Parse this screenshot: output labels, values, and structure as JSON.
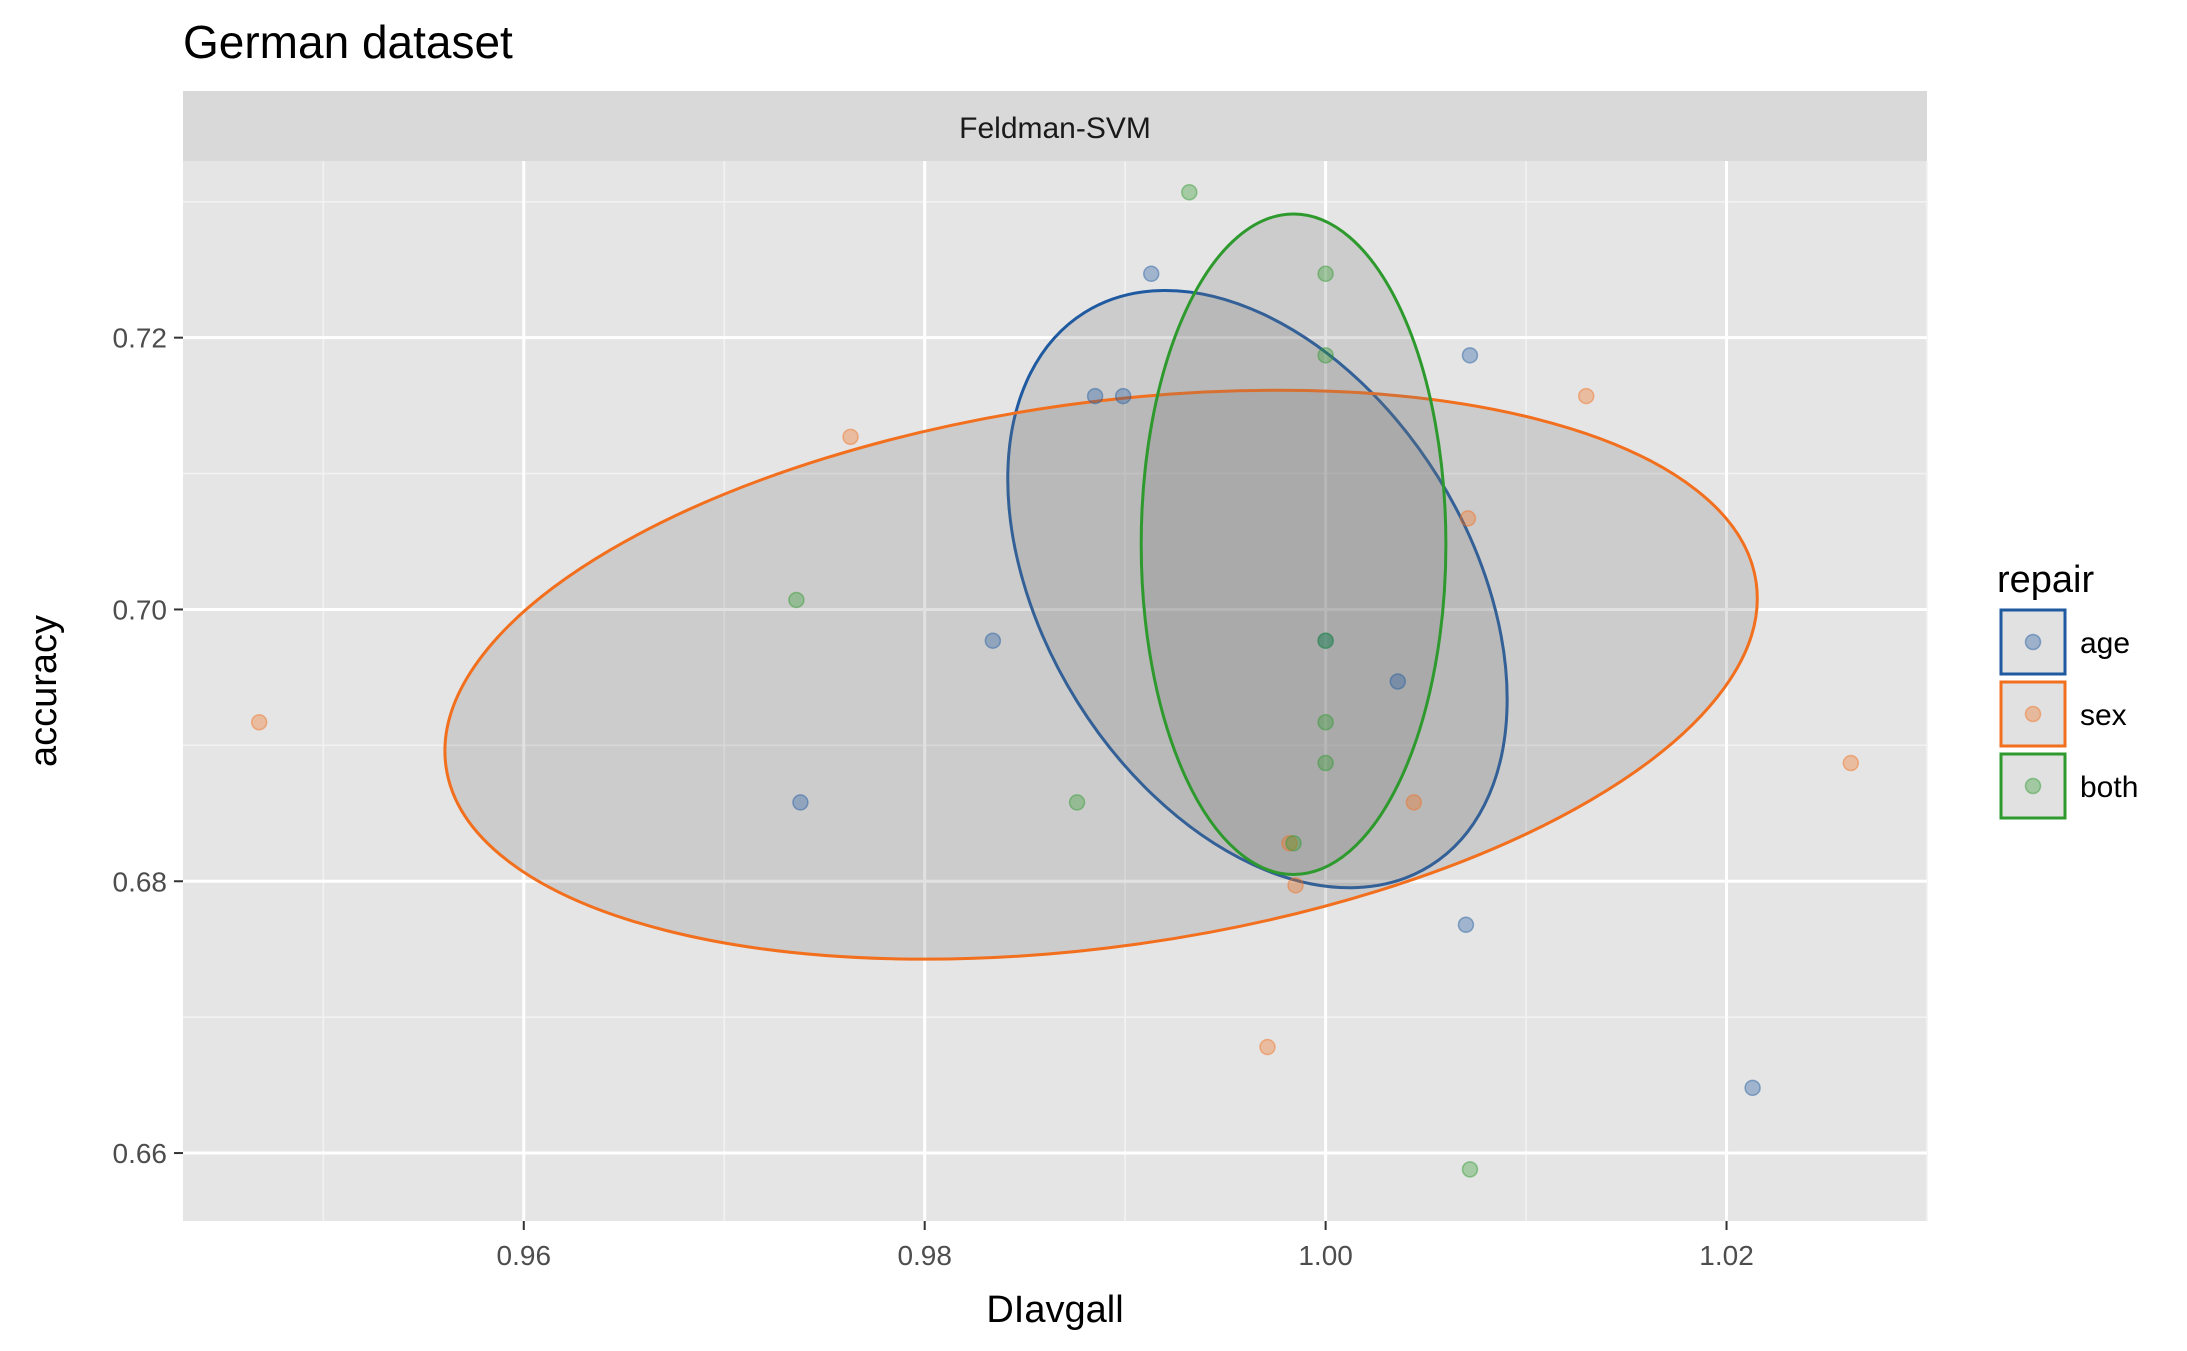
{
  "chart_data": {
    "type": "scatter",
    "title": "German dataset",
    "facet": "Feldman-SVM",
    "xlabel": "DIavgall",
    "ylabel": "accuracy",
    "xlim": [
      0.943,
      1.03
    ],
    "ylim": [
      0.655,
      0.733
    ],
    "x_ticks": [
      0.96,
      0.98,
      1.0,
      1.02
    ],
    "x_tick_labels": [
      "0.96",
      "0.98",
      "1.00",
      "1.02"
    ],
    "y_ticks": [
      0.66,
      0.68,
      0.7,
      0.72
    ],
    "y_tick_labels": [
      "0.66",
      "0.68",
      "0.70",
      "0.72"
    ],
    "grid": true,
    "legend": {
      "title": "repair",
      "position": "right",
      "entries": [
        "age",
        "sex",
        "both"
      ]
    },
    "series": [
      {
        "name": "age",
        "color": "#1f5aa0",
        "points": [
          [
            0.9913,
            0.7247
          ],
          [
            0.9885,
            0.7157
          ],
          [
            0.9899,
            0.7157
          ],
          [
            1.0072,
            0.7187
          ],
          [
            0.9834,
            0.6977
          ],
          [
            1.0036,
            0.6947
          ],
          [
            1.0,
            0.6977
          ],
          [
            0.9738,
            0.6858
          ],
          [
            1.007,
            0.6768
          ],
          [
            1.0213,
            0.6648
          ]
        ],
        "ellipse": {
          "center": [
            0.9966,
            0.7015
          ],
          "radius_x": 0.0106,
          "radius_y": 0.024,
          "rotation": -32
        }
      },
      {
        "name": "sex",
        "color": "#f26f1e",
        "points": [
          [
            0.9468,
            0.6917
          ],
          [
            0.9763,
            0.7127
          ],
          [
            1.013,
            0.7157
          ],
          [
            1.0071,
            0.7067
          ],
          [
            1.0044,
            0.6858
          ],
          [
            0.9982,
            0.6828
          ],
          [
            0.9985,
            0.6797
          ],
          [
            0.9971,
            0.6678
          ],
          [
            1.0262,
            0.6887
          ]
        ],
        "ellipse": {
          "center": [
            0.9888,
            0.6952
          ],
          "radius_x": 0.033,
          "radius_y": 0.02,
          "rotation": -8
        }
      },
      {
        "name": "both",
        "color": "#2e9a2e",
        "points": [
          [
            0.9932,
            0.7307
          ],
          [
            1.0,
            0.7247
          ],
          [
            1.0,
            0.7187
          ],
          [
            0.9736,
            0.7007
          ],
          [
            1.0,
            0.6977
          ],
          [
            1.0,
            0.6917
          ],
          [
            1.0,
            0.6887
          ],
          [
            0.9876,
            0.6858
          ],
          [
            0.9984,
            0.6828
          ],
          [
            1.0072,
            0.6588
          ]
        ],
        "ellipse": {
          "center": [
            0.9984,
            0.7048
          ],
          "radius_x": 0.0076,
          "radius_y": 0.0243,
          "rotation": 0
        }
      }
    ]
  }
}
